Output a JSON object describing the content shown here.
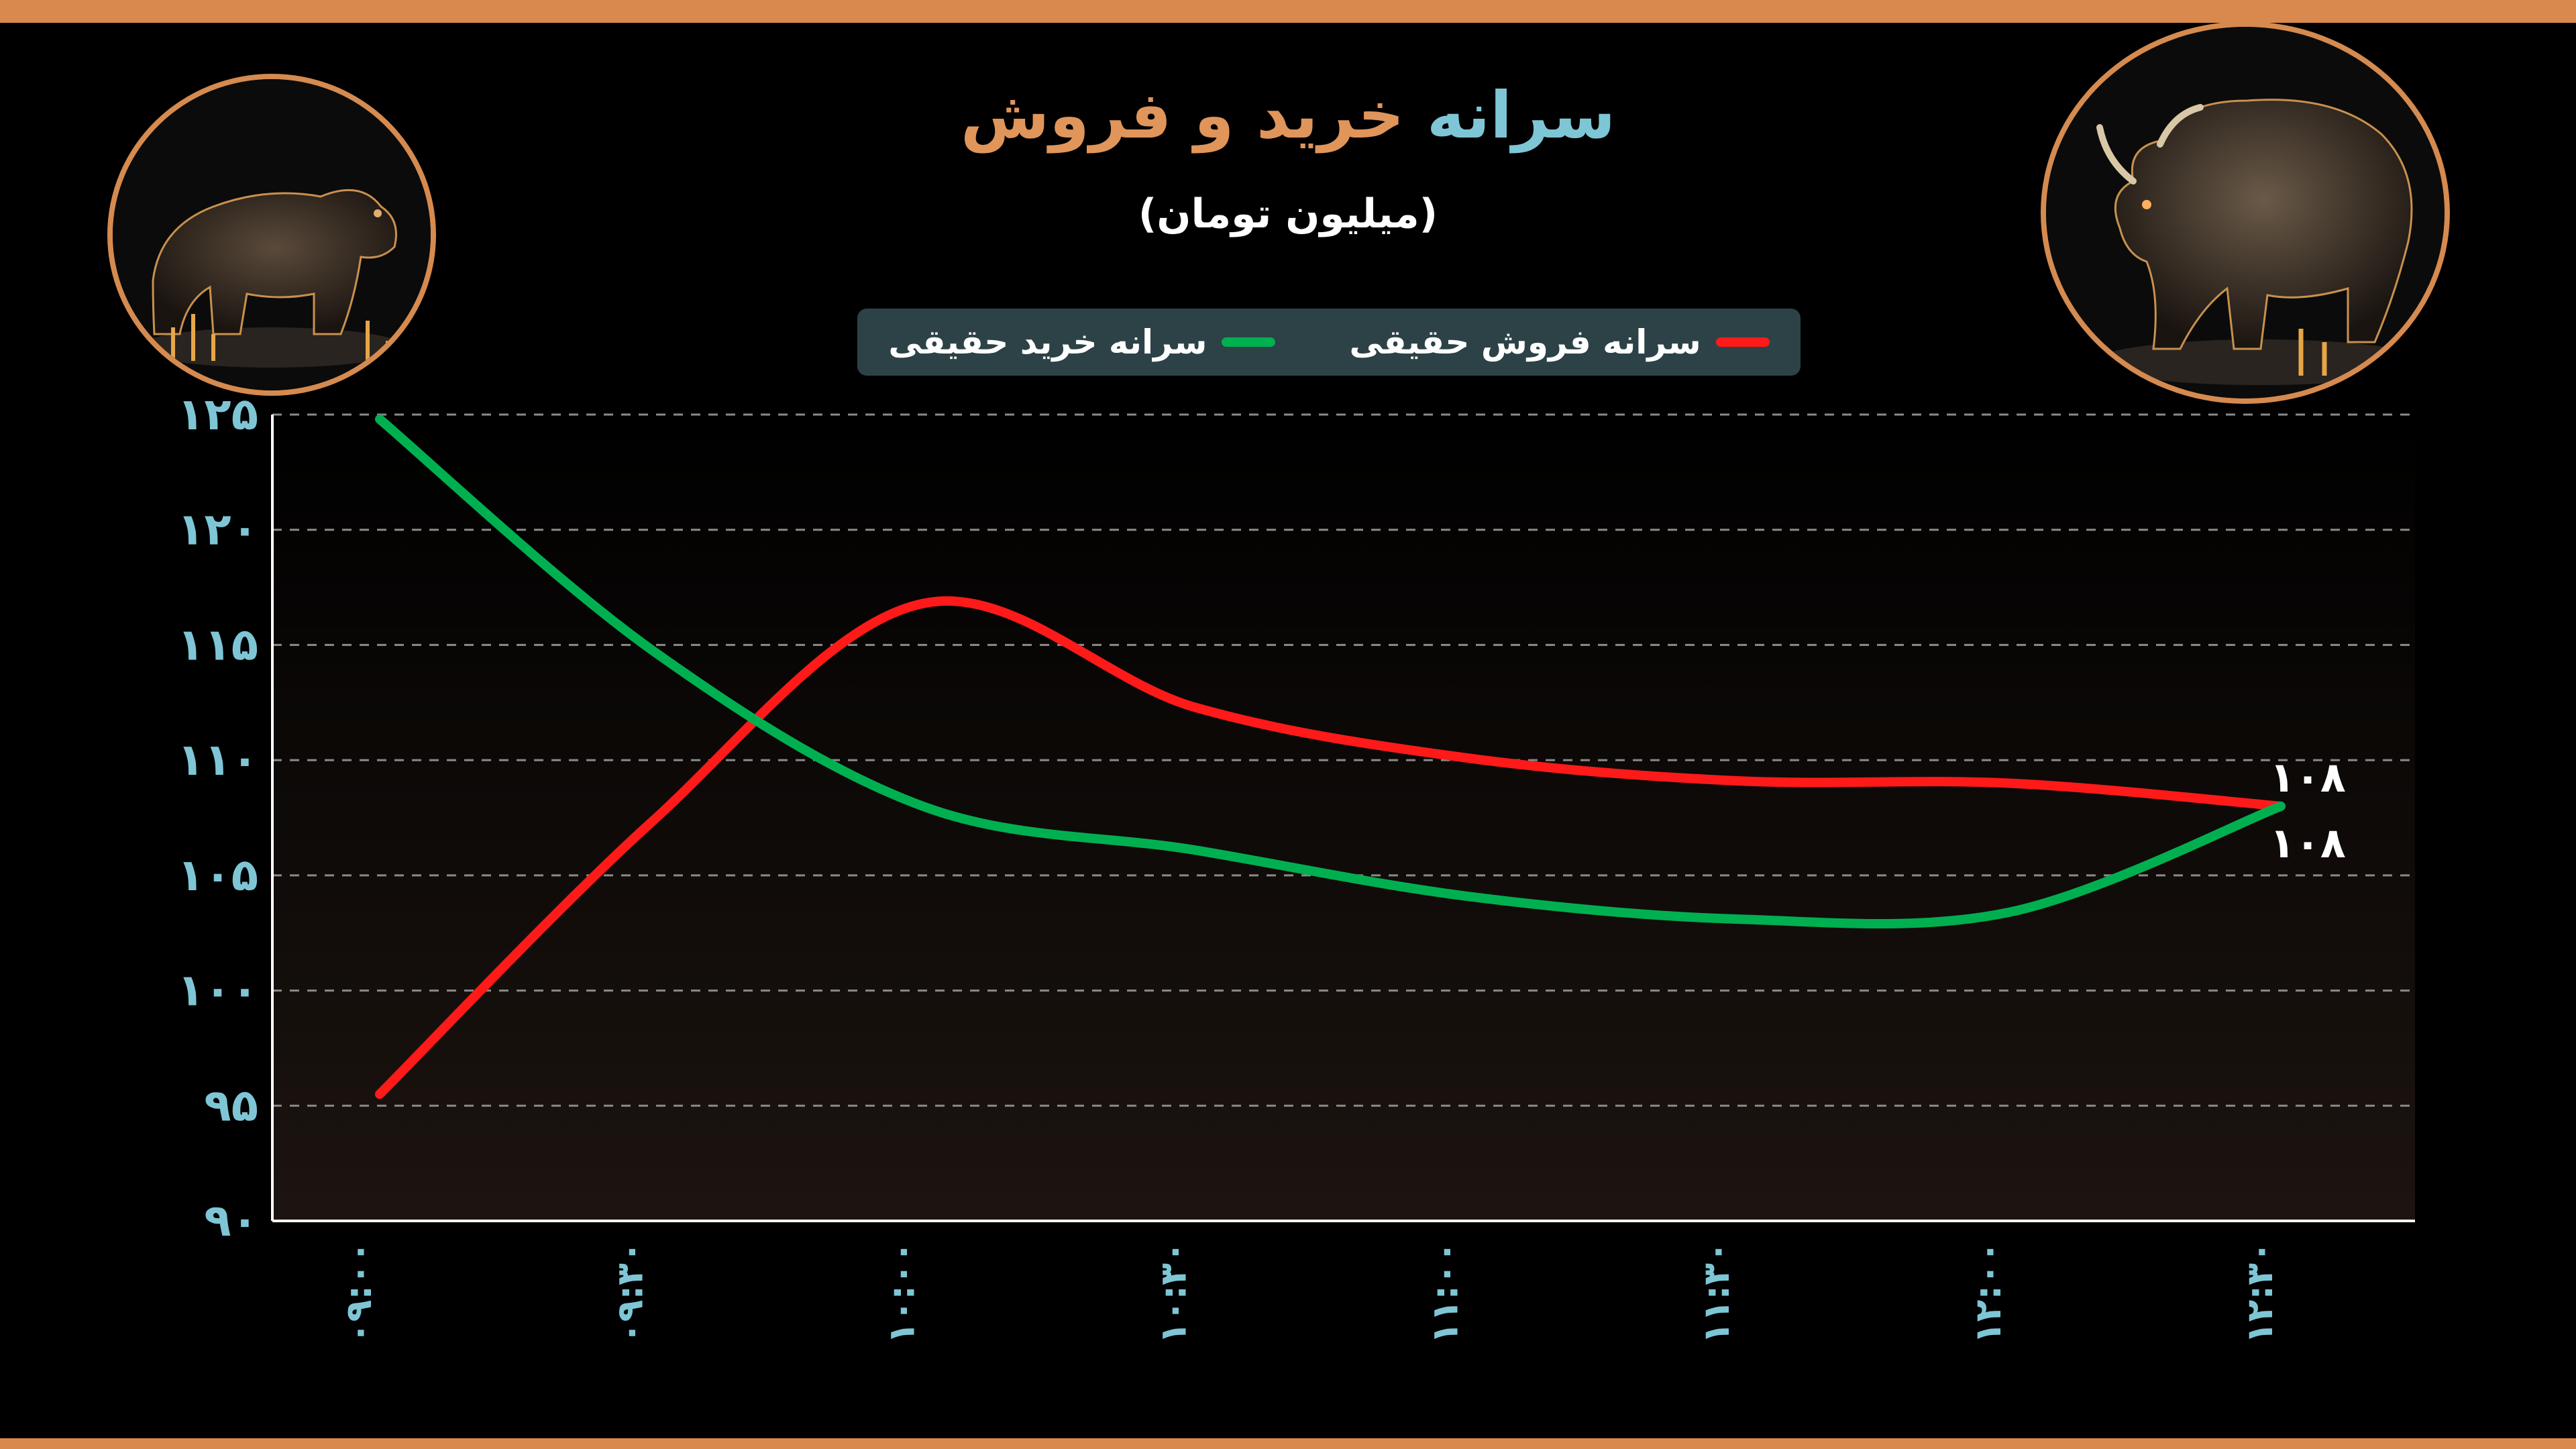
{
  "title": {
    "part1": "سرانه",
    "part2": "خرید و فروش"
  },
  "subtitle": "(میلیون تومان)",
  "legend": {
    "sell_label": "سرانه فروش حقیقی",
    "buy_label": "سرانه خرید حقیقی"
  },
  "icons": {
    "left": "bear-icon",
    "right": "bull-icon"
  },
  "colors": {
    "frame": "#d9894d",
    "title_primary": "#7ec6d6",
    "title_accent": "#e0955a",
    "sell": "#ff1a1a",
    "buy": "#00b050",
    "legend_bg": "#2c4247",
    "tick": "#7ec6d6"
  },
  "chart_data": {
    "type": "line",
    "categories": [
      "۰۹:۰۰",
      "۰۹:۳۰",
      "۱۰:۰۰",
      "۱۰:۳۰",
      "۱۱:۰۰",
      "۱۱:۳۰",
      "۱۲:۰۰",
      "۱۲:۳۰"
    ],
    "series": [
      {
        "name": "سرانه فروش حقیقی",
        "values": [
          95.5,
          107.3,
          116.8,
          112.3,
          110.1,
          109.1,
          109.0,
          108.0
        ]
      },
      {
        "name": "سرانه خرید حقیقی",
        "values": [
          124.8,
          114.8,
          108.0,
          106.1,
          104.1,
          103.1,
          103.4,
          108.0
        ]
      }
    ],
    "end_labels": [
      "۱۰۸",
      "۱۰۸"
    ],
    "ylim": [
      90,
      125
    ],
    "yticks": [
      90,
      95,
      100,
      105,
      110,
      115,
      120,
      125
    ],
    "ytick_labels": [
      "۹۰",
      "۹۵",
      "۱۰۰",
      "۱۰۵",
      "۱۱۰",
      "۱۱۵",
      "۱۲۰",
      "۱۲۵"
    ],
    "grid": true,
    "legend_position": "top-center"
  }
}
